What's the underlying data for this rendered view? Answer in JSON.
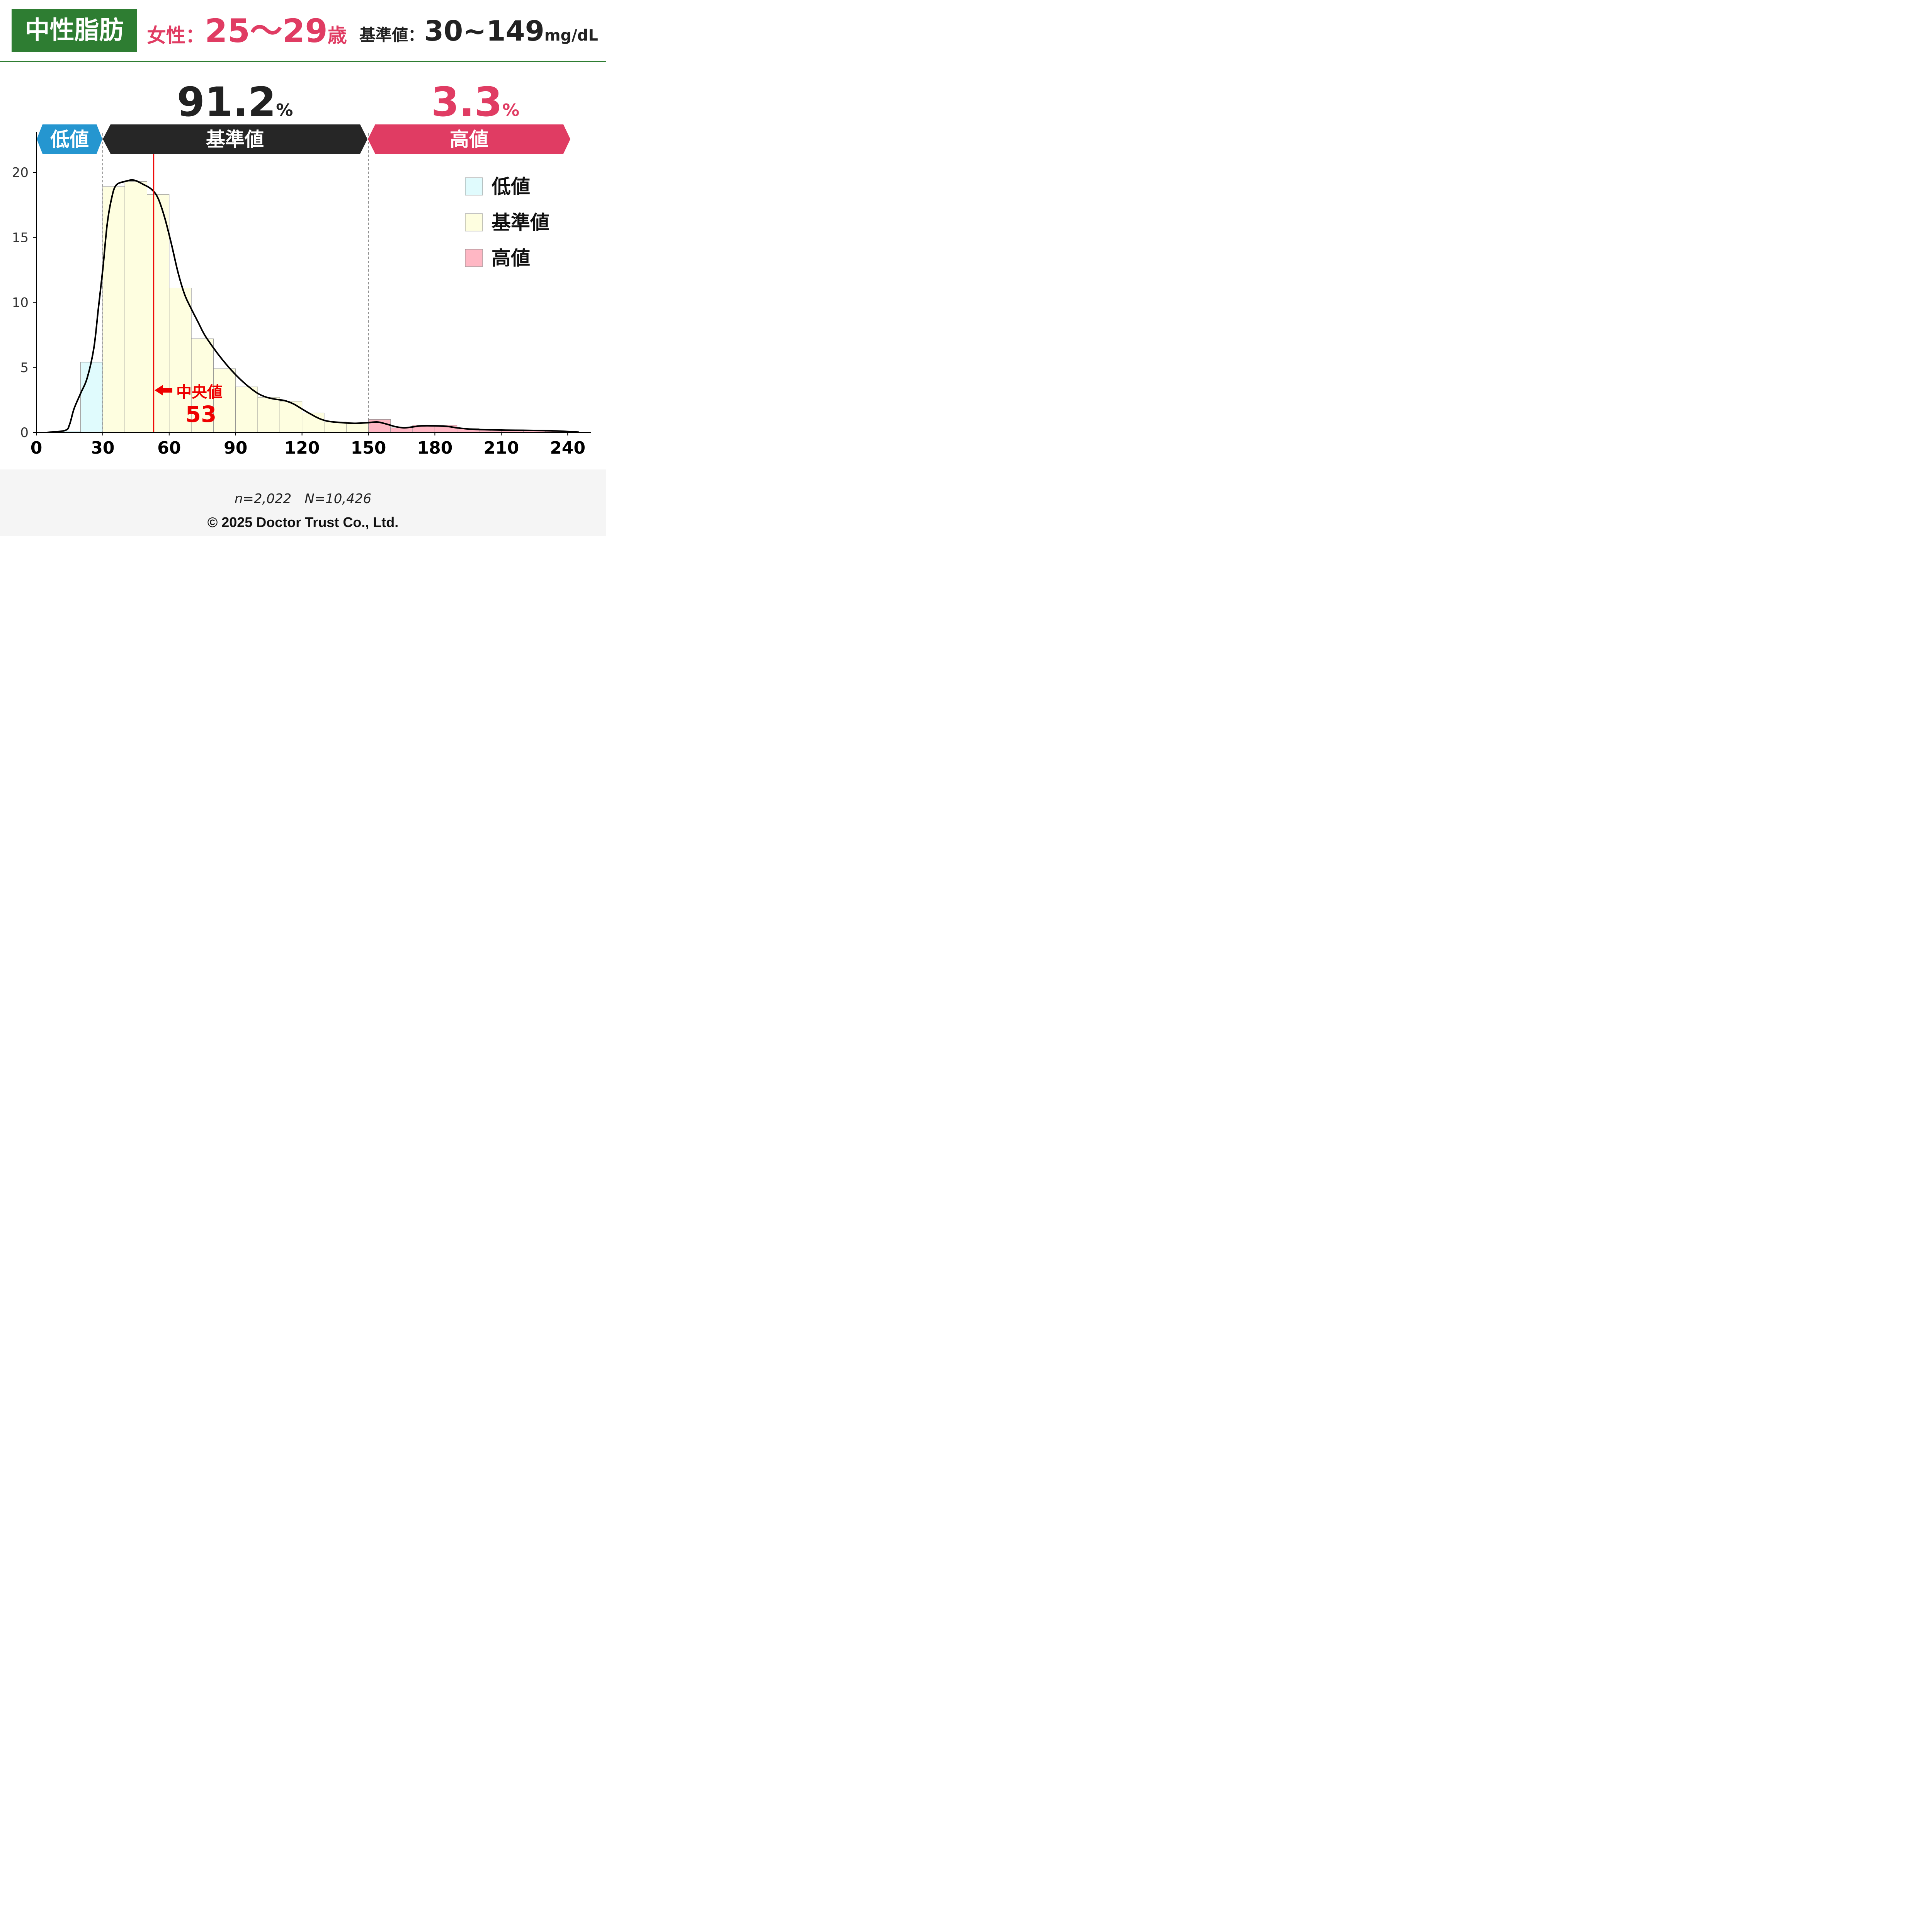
{
  "header": {
    "title": "中性脂肪",
    "gender": "女性",
    "age_range": "25～29",
    "age_unit": "歳",
    "std_label": "基準値",
    "std_value": "30~149",
    "std_unit": "mg/dL"
  },
  "percent_normal": "91.2",
  "percent_high": "3.3",
  "percent_unit": "%",
  "band_labels": {
    "low": "低値",
    "normal": "基準値",
    "high": "高値"
  },
  "median": {
    "label": "中央値",
    "value": "53"
  },
  "colors": {
    "green": "#2e7d32",
    "pink": "#e03c63",
    "blue": "#2596d0",
    "dark": "#222222",
    "low_fill": "#e0fbfd",
    "normal_fill": "#fefee0",
    "high_fill": "#ffb7c4",
    "median": "#ee0000"
  },
  "chart_data": {
    "type": "bar",
    "bin_width": 10,
    "bins": [
      {
        "x": 10,
        "y": 0.1,
        "cat": "low"
      },
      {
        "x": 20,
        "y": 5.4,
        "cat": "low"
      },
      {
        "x": 30,
        "y": 18.9,
        "cat": "normal"
      },
      {
        "x": 40,
        "y": 19.3,
        "cat": "normal"
      },
      {
        "x": 50,
        "y": 18.3,
        "cat": "normal"
      },
      {
        "x": 60,
        "y": 11.1,
        "cat": "normal"
      },
      {
        "x": 70,
        "y": 7.2,
        "cat": "normal"
      },
      {
        "x": 80,
        "y": 4.9,
        "cat": "normal"
      },
      {
        "x": 90,
        "y": 3.5,
        "cat": "normal"
      },
      {
        "x": 100,
        "y": 2.7,
        "cat": "normal"
      },
      {
        "x": 110,
        "y": 2.4,
        "cat": "normal"
      },
      {
        "x": 120,
        "y": 1.5,
        "cat": "normal"
      },
      {
        "x": 130,
        "y": 0.8,
        "cat": "normal"
      },
      {
        "x": 140,
        "y": 0.7,
        "cat": "normal"
      },
      {
        "x": 150,
        "y": 1.0,
        "cat": "high"
      },
      {
        "x": 160,
        "y": 0.35,
        "cat": "high"
      },
      {
        "x": 170,
        "y": 0.55,
        "cat": "high"
      },
      {
        "x": 180,
        "y": 0.55,
        "cat": "high"
      },
      {
        "x": 190,
        "y": 0.3,
        "cat": "high"
      },
      {
        "x": 200,
        "y": 0.2,
        "cat": "high"
      },
      {
        "x": 210,
        "y": 0.2,
        "cat": "high"
      },
      {
        "x": 220,
        "y": 0.15,
        "cat": "high"
      },
      {
        "x": 230,
        "y": 0.1,
        "cat": "high"
      }
    ],
    "density": [
      [
        5,
        0
      ],
      [
        13,
        0.15
      ],
      [
        15,
        0.6
      ],
      [
        17,
        1.8
      ],
      [
        20,
        3.0
      ],
      [
        23,
        4.2
      ],
      [
        26,
        6.5
      ],
      [
        28,
        9.5
      ],
      [
        30,
        12.5
      ],
      [
        32,
        16.0
      ],
      [
        34,
        18.0
      ],
      [
        36,
        19.0
      ],
      [
        40,
        19.3
      ],
      [
        44,
        19.4
      ],
      [
        48,
        19.1
      ],
      [
        52,
        18.7
      ],
      [
        55,
        18.0
      ],
      [
        58,
        16.5
      ],
      [
        61,
        14.5
      ],
      [
        64,
        12.3
      ],
      [
        67,
        10.6
      ],
      [
        70,
        9.5
      ],
      [
        73,
        8.5
      ],
      [
        76,
        7.5
      ],
      [
        80,
        6.5
      ],
      [
        84,
        5.6
      ],
      [
        88,
        4.8
      ],
      [
        92,
        4.1
      ],
      [
        96,
        3.5
      ],
      [
        100,
        3.0
      ],
      [
        104,
        2.7
      ],
      [
        108,
        2.55
      ],
      [
        112,
        2.45
      ],
      [
        116,
        2.2
      ],
      [
        120,
        1.8
      ],
      [
        124,
        1.4
      ],
      [
        128,
        1.05
      ],
      [
        132,
        0.85
      ],
      [
        138,
        0.75
      ],
      [
        144,
        0.7
      ],
      [
        150,
        0.75
      ],
      [
        154,
        0.8
      ],
      [
        158,
        0.65
      ],
      [
        162,
        0.45
      ],
      [
        166,
        0.35
      ],
      [
        170,
        0.42
      ],
      [
        174,
        0.5
      ],
      [
        180,
        0.5
      ],
      [
        186,
        0.45
      ],
      [
        190,
        0.35
      ],
      [
        196,
        0.25
      ],
      [
        204,
        0.2
      ],
      [
        212,
        0.17
      ],
      [
        220,
        0.16
      ],
      [
        228,
        0.14
      ],
      [
        236,
        0.1
      ],
      [
        245,
        0.02
      ]
    ],
    "xticks": [
      0,
      30,
      60,
      90,
      120,
      150,
      180,
      210,
      240
    ],
    "yticks": [
      0,
      5,
      10,
      15,
      20
    ],
    "xlim": [
      0,
      250
    ],
    "ylim": [
      0,
      23
    ],
    "thresholds": [
      30,
      150
    ],
    "median": 53,
    "legend": [
      "低値",
      "基準値",
      "高値"
    ],
    "legend_position": "top-right"
  },
  "footer": {
    "stats": "n=2,022　N=10,426",
    "copyright": "© 2025 Doctor Trust Co., Ltd."
  }
}
